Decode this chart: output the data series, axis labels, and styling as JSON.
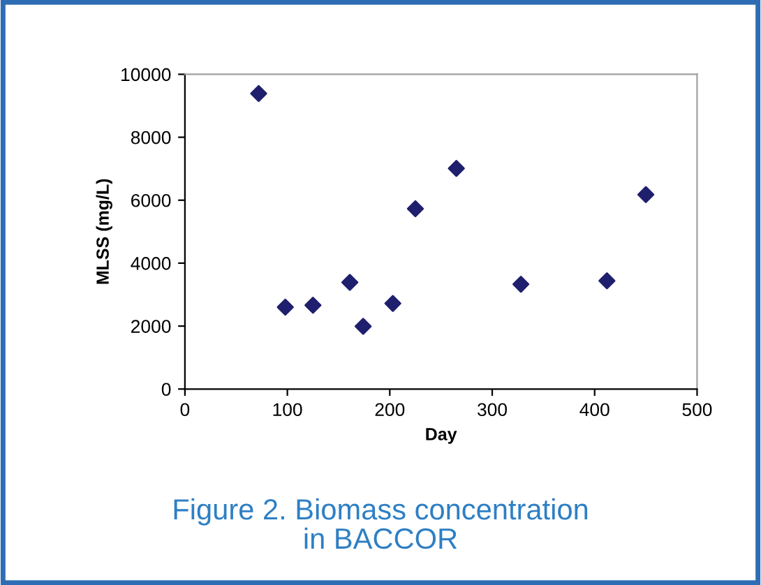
{
  "chart_data": {
    "type": "scatter",
    "xlabel": "Day",
    "ylabel": "MLSS (mg/L)",
    "x": [
      72,
      98,
      125,
      161,
      174,
      203,
      225,
      265,
      328,
      412,
      450
    ],
    "series": [
      {
        "color": "#1f1f6e",
        "values": [
          9390,
          2600,
          2660,
          3390,
          1990,
          2720,
          5730,
          7010,
          3330,
          3440,
          6180
        ]
      }
    ],
    "marker": "diamond",
    "xlim": [
      0,
      500
    ],
    "xticks": [
      0,
      100,
      200,
      300,
      400,
      500
    ],
    "ylim": [
      0,
      10000
    ],
    "yticks": [
      0,
      2000,
      4000,
      6000,
      8000,
      10000
    ],
    "grid": false,
    "legend": false,
    "annotations": [
      "Figure 2. Biomass concentration\nin BACCOR"
    ]
  }
}
